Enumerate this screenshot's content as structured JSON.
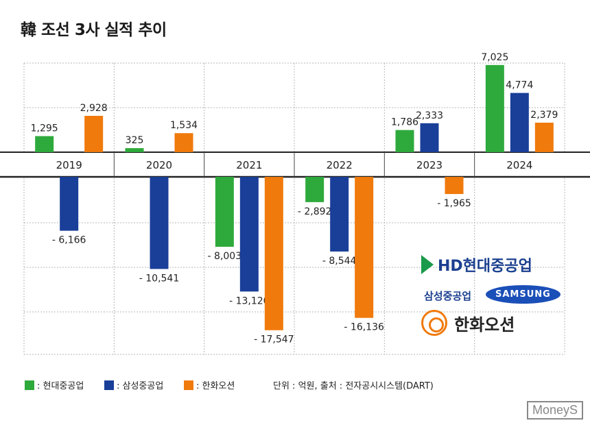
{
  "title": "韓 조선 3사 실적 추이",
  "chart_data": {
    "type": "bar",
    "title": "韓 조선 3사 실적 추이",
    "categories": [
      "2019",
      "2020",
      "2021",
      "2022",
      "2023",
      "2024"
    ],
    "series": [
      {
        "name": "현대중공업",
        "color": "#2eaa3c",
        "values": [
          1295,
          325,
          -8003,
          -2892,
          1786,
          7025
        ]
      },
      {
        "name": "삼성중공업",
        "color": "#1a3f99",
        "values": [
          -6166,
          -10541,
          -13120,
          -8544,
          2333,
          4774
        ]
      },
      {
        "name": "한화오션",
        "color": "#f07a0c",
        "values": [
          2928,
          1534,
          -17547,
          -16136,
          -1965,
          2379
        ]
      }
    ],
    "value_labels": [
      [
        "1,295",
        "325",
        "- 8,003",
        "- 2,892",
        "1,786",
        "7,025"
      ],
      [
        "- 6,166",
        "- 10,541",
        "- 13,120",
        "- 8,544",
        "2,333",
        "4,774"
      ],
      [
        "2,928",
        "1,534",
        "- 17,547",
        "- 16,136",
        "- 1,965",
        "2,379"
      ]
    ],
    "legend_prefix": ":",
    "ylabel": "억원",
    "grid": true
  },
  "legend": [
    {
      "label": ": 현대중공업",
      "color": "#2eaa3c"
    },
    {
      "label": ": 삼성중공업",
      "color": "#1a3f99"
    },
    {
      "label": ": 한화오션",
      "color": "#f07a0c"
    }
  ],
  "unit_note": "단위 : 억원, 출처 : 전자공시시스템(DART)",
  "logos": {
    "hd": "HD현대중공업",
    "samsung_kr": "삼성중공업",
    "samsung": "SAMSUNG",
    "hanwha": "한화오션"
  },
  "watermark": "MoneyS"
}
